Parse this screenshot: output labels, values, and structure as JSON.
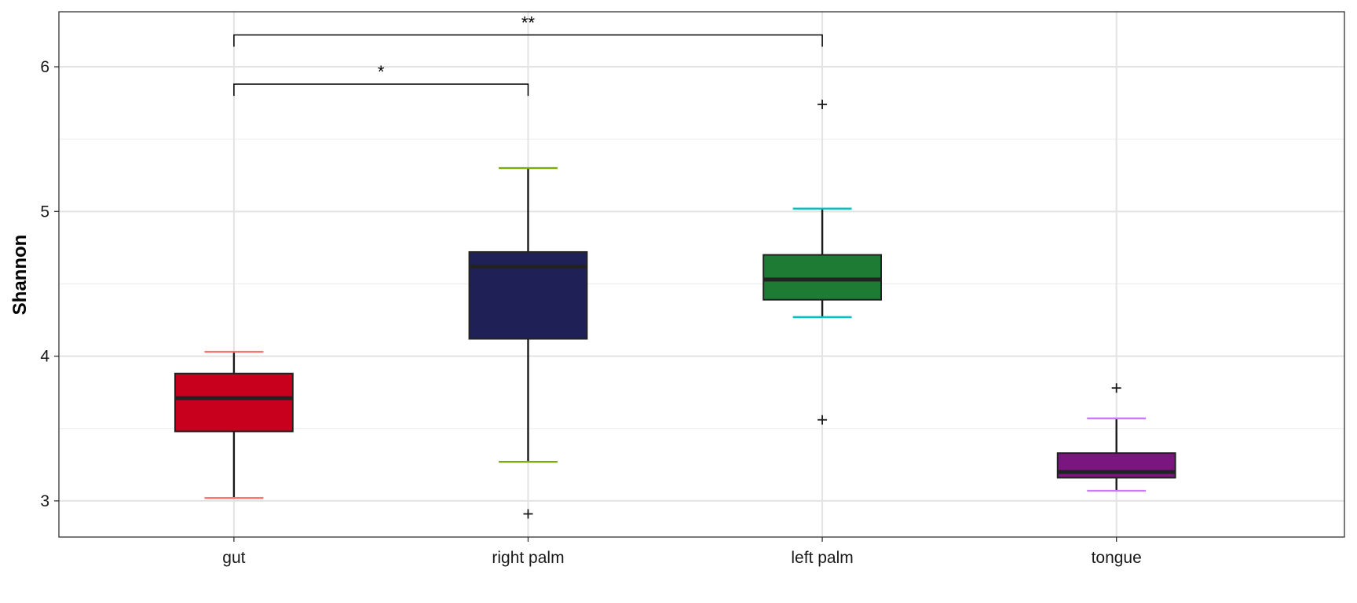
{
  "chart_data": {
    "type": "box",
    "ylabel": "Shannon",
    "xlabel": "",
    "ylim": [
      2.75,
      6.38
    ],
    "yticks": [
      3,
      4,
      5,
      6
    ],
    "ytick_labels": [
      "3",
      "4",
      "5",
      "6"
    ],
    "grid": true,
    "legend": "none",
    "categories": [
      "gut",
      "right palm",
      "left palm",
      "tongue"
    ],
    "boxes": [
      {
        "category": "gut",
        "q1": 3.48,
        "median": 3.71,
        "q3": 3.88,
        "whisker_low": 3.02,
        "whisker_high": 4.03,
        "outliers": [],
        "fill": "#c8001e",
        "cap_color": "#f8766d"
      },
      {
        "category": "right palm",
        "q1": 4.12,
        "median": 4.62,
        "q3": 4.72,
        "whisker_low": 3.27,
        "whisker_high": 5.3,
        "outliers": [
          2.91
        ],
        "fill": "#1e2056",
        "cap_color": "#7cae00"
      },
      {
        "category": "left palm",
        "q1": 4.39,
        "median": 4.53,
        "q3": 4.7,
        "whisker_low": 4.27,
        "whisker_high": 5.02,
        "outliers": [
          5.74,
          3.56
        ],
        "fill": "#1e7b33",
        "cap_color": "#00bfc4"
      },
      {
        "category": "tongue",
        "q1": 3.16,
        "median": 3.2,
        "q3": 3.33,
        "whisker_low": 3.07,
        "whisker_high": 3.57,
        "outliers": [
          3.78
        ],
        "fill": "#7b1580",
        "cap_color": "#c77cff"
      }
    ],
    "significance": [
      {
        "from": "gut",
        "to": "right palm",
        "y": 5.88,
        "label": "*"
      },
      {
        "from": "gut",
        "to": "left palm",
        "y": 6.22,
        "label": "**"
      }
    ]
  }
}
